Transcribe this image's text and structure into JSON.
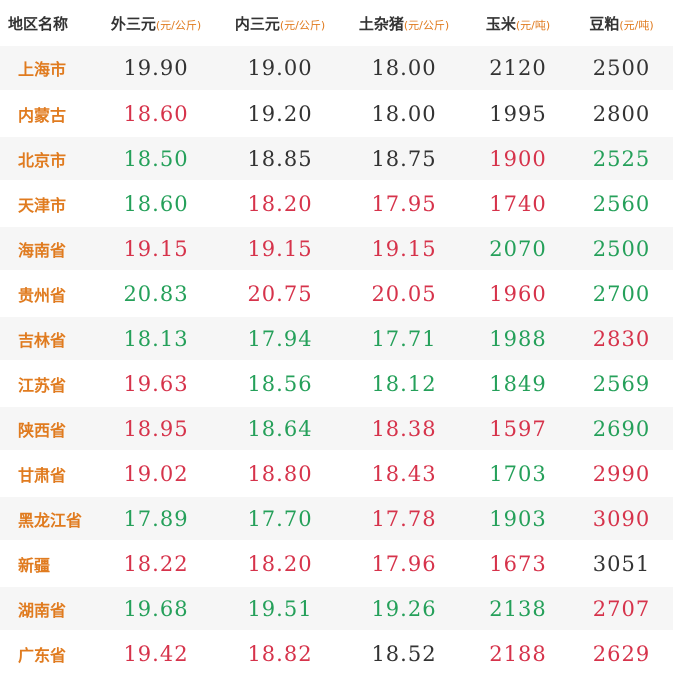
{
  "headers": {
    "region": "地区名称",
    "waisanyuan": {
      "name": "外三元",
      "unit": "(元/公斤)"
    },
    "neisanyuan": {
      "name": "内三元",
      "unit": "(元/公斤)"
    },
    "tuzazhu": {
      "name": "土杂猪",
      "unit": "(元/公斤)"
    },
    "corn": {
      "name": "玉米",
      "unit": "(元/吨)"
    },
    "soymeal": {
      "name": "豆粕",
      "unit": "(元/吨)"
    }
  },
  "colors": {
    "region": "#e07b1f",
    "up": "#d6334b",
    "down": "#25a05a",
    "flat": "#333333"
  },
  "rows": [
    {
      "region": "上海市",
      "cells": [
        {
          "v": "19.90",
          "t": "flat"
        },
        {
          "v": "19.00",
          "t": "flat"
        },
        {
          "v": "18.00",
          "t": "flat"
        },
        {
          "v": "2120",
          "t": "flat"
        },
        {
          "v": "2500",
          "t": "flat"
        }
      ]
    },
    {
      "region": "内蒙古",
      "cells": [
        {
          "v": "18.60",
          "t": "up"
        },
        {
          "v": "19.20",
          "t": "flat"
        },
        {
          "v": "18.00",
          "t": "flat"
        },
        {
          "v": "1995",
          "t": "flat"
        },
        {
          "v": "2800",
          "t": "flat"
        }
      ]
    },
    {
      "region": "北京市",
      "cells": [
        {
          "v": "18.50",
          "t": "down"
        },
        {
          "v": "18.85",
          "t": "flat"
        },
        {
          "v": "18.75",
          "t": "flat"
        },
        {
          "v": "1900",
          "t": "up"
        },
        {
          "v": "2525",
          "t": "down"
        }
      ]
    },
    {
      "region": "天津市",
      "cells": [
        {
          "v": "18.60",
          "t": "down"
        },
        {
          "v": "18.20",
          "t": "up"
        },
        {
          "v": "17.95",
          "t": "up"
        },
        {
          "v": "1740",
          "t": "up"
        },
        {
          "v": "2560",
          "t": "down"
        }
      ]
    },
    {
      "region": "海南省",
      "cells": [
        {
          "v": "19.15",
          "t": "up"
        },
        {
          "v": "19.15",
          "t": "up"
        },
        {
          "v": "19.15",
          "t": "up"
        },
        {
          "v": "2070",
          "t": "down"
        },
        {
          "v": "2500",
          "t": "down"
        }
      ]
    },
    {
      "region": "贵州省",
      "cells": [
        {
          "v": "20.83",
          "t": "down"
        },
        {
          "v": "20.75",
          "t": "up"
        },
        {
          "v": "20.05",
          "t": "up"
        },
        {
          "v": "1960",
          "t": "up"
        },
        {
          "v": "2700",
          "t": "down"
        }
      ]
    },
    {
      "region": "吉林省",
      "cells": [
        {
          "v": "18.13",
          "t": "down"
        },
        {
          "v": "17.94",
          "t": "down"
        },
        {
          "v": "17.71",
          "t": "down"
        },
        {
          "v": "1988",
          "t": "down"
        },
        {
          "v": "2830",
          "t": "up"
        }
      ]
    },
    {
      "region": "江苏省",
      "cells": [
        {
          "v": "19.63",
          "t": "up"
        },
        {
          "v": "18.56",
          "t": "down"
        },
        {
          "v": "18.12",
          "t": "down"
        },
        {
          "v": "1849",
          "t": "down"
        },
        {
          "v": "2569",
          "t": "down"
        }
      ]
    },
    {
      "region": "陕西省",
      "cells": [
        {
          "v": "18.95",
          "t": "up"
        },
        {
          "v": "18.64",
          "t": "down"
        },
        {
          "v": "18.38",
          "t": "up"
        },
        {
          "v": "1597",
          "t": "up"
        },
        {
          "v": "2690",
          "t": "down"
        }
      ]
    },
    {
      "region": "甘肃省",
      "cells": [
        {
          "v": "19.02",
          "t": "up"
        },
        {
          "v": "18.80",
          "t": "up"
        },
        {
          "v": "18.43",
          "t": "up"
        },
        {
          "v": "1703",
          "t": "down"
        },
        {
          "v": "2990",
          "t": "up"
        }
      ]
    },
    {
      "region": "黑龙江省",
      "cells": [
        {
          "v": "17.89",
          "t": "down"
        },
        {
          "v": "17.70",
          "t": "down"
        },
        {
          "v": "17.78",
          "t": "up"
        },
        {
          "v": "1903",
          "t": "down"
        },
        {
          "v": "3090",
          "t": "up"
        }
      ]
    },
    {
      "region": "新疆",
      "cells": [
        {
          "v": "18.22",
          "t": "up"
        },
        {
          "v": "18.20",
          "t": "up"
        },
        {
          "v": "17.96",
          "t": "up"
        },
        {
          "v": "1673",
          "t": "up"
        },
        {
          "v": "3051",
          "t": "flat"
        }
      ]
    },
    {
      "region": "湖南省",
      "cells": [
        {
          "v": "19.68",
          "t": "down"
        },
        {
          "v": "19.51",
          "t": "down"
        },
        {
          "v": "19.26",
          "t": "down"
        },
        {
          "v": "2138",
          "t": "down"
        },
        {
          "v": "2707",
          "t": "up"
        }
      ]
    },
    {
      "region": "广东省",
      "cells": [
        {
          "v": "19.42",
          "t": "up"
        },
        {
          "v": "18.82",
          "t": "up"
        },
        {
          "v": "18.52",
          "t": "flat"
        },
        {
          "v": "2188",
          "t": "up"
        },
        {
          "v": "2629",
          "t": "up"
        }
      ]
    }
  ]
}
